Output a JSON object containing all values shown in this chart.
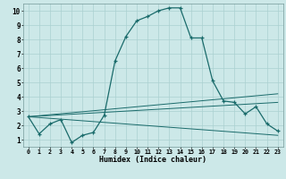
{
  "xlabel": "Humidex (Indice chaleur)",
  "x_ticks": [
    0,
    1,
    2,
    3,
    4,
    5,
    6,
    7,
    8,
    9,
    10,
    11,
    12,
    13,
    14,
    15,
    16,
    17,
    18,
    19,
    20,
    21,
    22,
    23
  ],
  "ylim": [
    0.5,
    10.5
  ],
  "xlim": [
    -0.5,
    23.5
  ],
  "background_color": "#cce8e8",
  "grid_color": "#aad0d0",
  "line_color": "#1a6b6b",
  "main_x": [
    0,
    1,
    2,
    3,
    4,
    5,
    6,
    7,
    8,
    9,
    10,
    11,
    12,
    13,
    14,
    15,
    16,
    17,
    18,
    19,
    20,
    21,
    22,
    23
  ],
  "main_y": [
    2.6,
    1.4,
    2.1,
    2.4,
    0.8,
    1.3,
    1.5,
    2.7,
    6.5,
    8.2,
    9.3,
    9.6,
    10.0,
    10.2,
    10.2,
    8.1,
    8.1,
    5.1,
    3.7,
    3.6,
    2.8,
    3.3,
    2.1,
    1.6
  ],
  "line1_x": [
    0,
    23
  ],
  "line1_y": [
    2.6,
    1.3
  ],
  "line2_x": [
    0,
    23
  ],
  "line2_y": [
    2.6,
    3.6
  ],
  "line3_x": [
    0,
    23
  ],
  "line3_y": [
    2.6,
    4.2
  ]
}
